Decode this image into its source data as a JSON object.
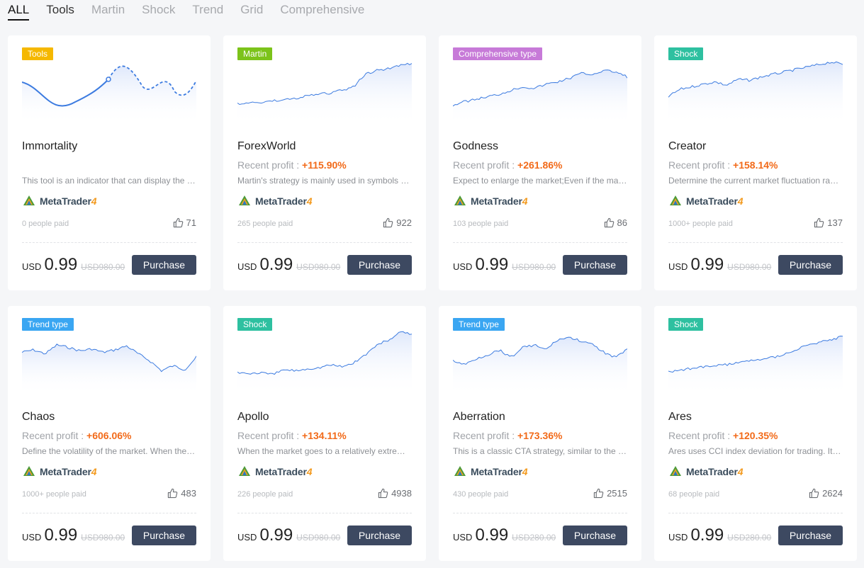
{
  "tabs": [
    {
      "label": "ALL",
      "active": true
    },
    {
      "label": "Tools",
      "active": false
    },
    {
      "label": "Martin",
      "active": false
    },
    {
      "label": "Shock",
      "active": false
    },
    {
      "label": "Trend",
      "active": false
    },
    {
      "label": "Grid",
      "active": false
    },
    {
      "label": "Comprehensive",
      "active": false
    }
  ],
  "colors": {
    "tools": "#f5b800",
    "martin": "#7cc31a",
    "comprehensive": "#c77ad8",
    "shock": "#2ec0a0",
    "trend": "#3aa6f2",
    "profit": "#f26a19",
    "purchase_button": "#3d4961"
  },
  "common": {
    "platform_icon": "metatrader-logo-icon",
    "platform_name": "MetaTrader",
    "platform_version": "4",
    "profit_label": "Recent profit : ",
    "currency": "USD",
    "purchase_label": "Purchase",
    "like_icon": "thumbs-up-icon"
  },
  "products": [
    {
      "name": "Immortality",
      "badge": "Tools",
      "badge_color": "#f5b800",
      "profit": "",
      "desc": "This tool is an indicator that can display the market trend and turning points",
      "paid": "0 people paid",
      "likes": "71",
      "price": "0.99",
      "old_price": "USD980.00"
    },
    {
      "name": "ForexWorld",
      "badge": "Martin",
      "badge_color": "#7cc31a",
      "profit": "+115.90%",
      "desc": "Martin's strategy is mainly used in symbols with large fluctuations",
      "paid": "265 people paid",
      "likes": "922",
      "price": "0.99",
      "old_price": "USD980.00"
    },
    {
      "name": "Godness",
      "badge": "Comprehensive type",
      "badge_color": "#c77ad8",
      "profit": "+261.86%",
      "desc": "Expect to enlarge the market;Even if the market goes against it",
      "paid": "103 people paid",
      "likes": "86",
      "price": "0.99",
      "old_price": "USD980.00"
    },
    {
      "name": "Creator",
      "badge": "Shock",
      "badge_color": "#2ec0a0",
      "profit": "+158.14%",
      "desc": "Determine the current market fluctuation range and trade",
      "paid": "1000+ people paid",
      "likes": "137",
      "price": "0.99",
      "old_price": "USD980.00"
    },
    {
      "name": "Chaos",
      "badge": "Trend type",
      "badge_color": "#3aa6f2",
      "profit": "+606.06%",
      "desc": "Define the volatility of the market. When the market breaks out",
      "paid": "1000+ people paid",
      "likes": "483",
      "price": "0.99",
      "old_price": "USD980.00"
    },
    {
      "name": "Apollo",
      "badge": "Shock",
      "badge_color": "#2ec0a0",
      "profit": "+134.11%",
      "desc": "When the market goes to a relatively extreme position",
      "paid": "226 people paid",
      "likes": "4938",
      "price": "0.99",
      "old_price": "USD980.00"
    },
    {
      "name": "Aberration",
      "badge": "Trend type",
      "badge_color": "#3aa6f2",
      "profit": "+173.36%",
      "desc": "This is a classic CTA strategy, similar to the Bollinger band",
      "paid": "430 people paid",
      "likes": "2515",
      "price": "0.99",
      "old_price": "USD280.00"
    },
    {
      "name": "Ares",
      "badge": "Shock",
      "badge_color": "#2ec0a0",
      "profit": "+120.35%",
      "desc": "Ares uses CCI index deviation for trading. It is suitable",
      "paid": "68 people paid",
      "likes": "2624",
      "price": "0.99",
      "old_price": "USD280.00"
    }
  ]
}
